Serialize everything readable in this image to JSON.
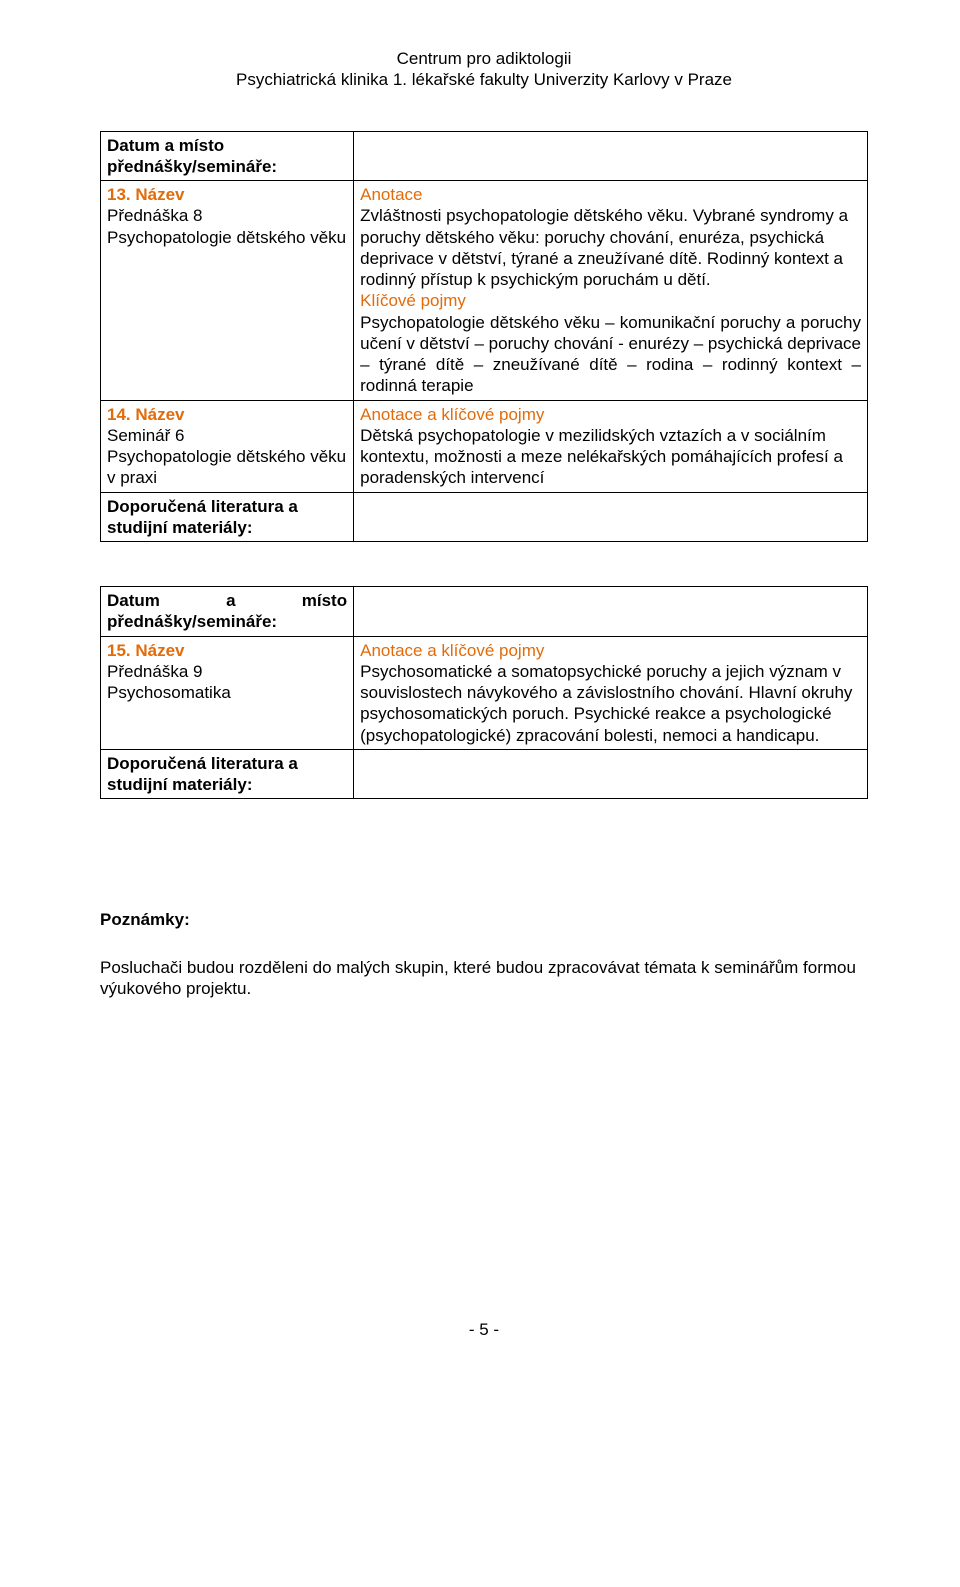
{
  "colors": {
    "orange": "#e26b0a",
    "text": "#000000",
    "background": "#ffffff",
    "border": "#000000"
  },
  "typography": {
    "font_family": "Arial",
    "body_fontsize": 17
  },
  "header": {
    "line1": "Centrum pro adiktologii",
    "line2": "Psychiatrická klinika 1. lékařské fakulty Univerzity Karlovy v Praze"
  },
  "table1": {
    "row1_left": "Datum a místo přednášky/semináře:",
    "row2_left_title": "13. Název",
    "row2_left_sub1": "Přednáška 8",
    "row2_left_sub2": "Psychopatologie dětského věku",
    "row2_right_h1": "Anotace",
    "row2_right_p1": "Zvláštnosti psychopatologie dětského věku. Vybrané syndromy a poruchy dětského věku: poruchy chování, enuréza, psychická deprivace v dětství, týrané a zneužívané dítě. Rodinný kontext a rodinný přístup k psychickým poruchám u dětí.",
    "row2_right_h2": "Klíčové pojmy",
    "row2_right_p2": "Psychopatologie dětského věku – komunikační poruchy a poruchy učení v dětství – poruchy chování - enurézy – psychická deprivace – týrané dítě – zneužívané dítě – rodina – rodinný kontext – rodinná terapie",
    "row3_left_title": "14. Název",
    "row3_left_sub1": "Seminář 6",
    "row3_left_sub2": "Psychopatologie dětského věku v praxi",
    "row3_right_h1": "Anotace a klíčové pojmy",
    "row3_right_p1": "Dětská psychopatologie v mezilidských vztazích a v sociálním kontextu, možnosti a meze nelékařských pomáhajících profesí a poradenských intervencí",
    "row4_left": "Doporučená literatura a studijní materiály:"
  },
  "table2": {
    "row1_left_l1": "Datum",
    "row1_left_l2": "a",
    "row1_left_l3": "místo",
    "row1_left_line2": "přednášky/semináře:",
    "row2_left_title": "15. Název",
    "row2_left_sub1": "Přednáška 9",
    "row2_left_sub2": "Psychosomatika",
    "row2_right_h1": "Anotace a klíčové pojmy",
    "row2_right_p1": "Psychosomatické a somatopsychické poruchy a jejich význam v souvislostech návykového a závislostního chování. Hlavní okruhy psychosomatických poruch. Psychické reakce a psychologické (psychopatologické) zpracování bolesti, nemoci a handicapu.",
    "row3_left": "Doporučená literatura a studijní materiály:"
  },
  "notes": {
    "heading": "Poznámky:",
    "body": "Posluchači budou rozděleni do malých skupin, které budou zpracovávat témata k seminářům formou výukového projektu."
  },
  "footer": {
    "page": "- 5 -"
  }
}
